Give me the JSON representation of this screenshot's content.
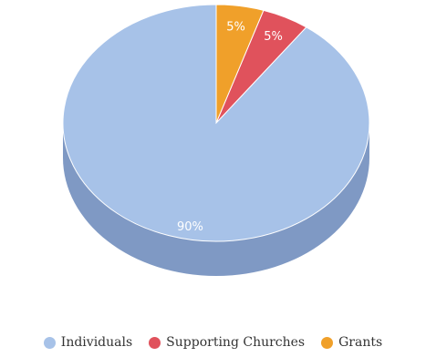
{
  "chart_data": {
    "type": "pie",
    "title": "",
    "slices": [
      {
        "label": "Individuals",
        "value": 90,
        "display": "90%",
        "color": "#a7c2e8",
        "side_color": "#7f99c4"
      },
      {
        "label": "Supporting Churches",
        "value": 5,
        "display": "5%",
        "color": "#e0525c",
        "side_color": "#b03c45"
      },
      {
        "label": "Grants",
        "value": 5,
        "display": "5%",
        "color": "#f0a02a",
        "side_color": "#c57f1c"
      }
    ],
    "start_angle_deg": 0,
    "direction": "counterclockwise",
    "three_d": true,
    "legend_position": "bottom"
  }
}
